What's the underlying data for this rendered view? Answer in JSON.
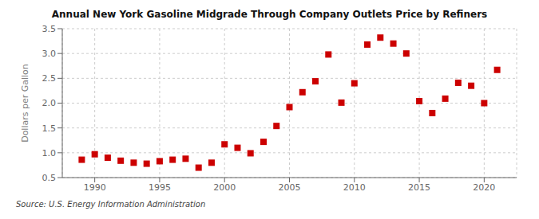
{
  "chart_data": {
    "type": "scatter",
    "title": "Annual New York Gasoline Midgrade Through Company Outlets Price by Refiners",
    "ylabel": "Dollars per Gallon",
    "annotation": "Source: U.S. Energy Information Administration",
    "x": [
      1989,
      1990,
      1991,
      1992,
      1993,
      1994,
      1995,
      1996,
      1997,
      1998,
      1999,
      2000,
      2001,
      2002,
      2003,
      2004,
      2005,
      2006,
      2007,
      2008,
      2009,
      2010,
      2011,
      2012,
      2013,
      2014,
      2015,
      2016,
      2017,
      2018,
      2019,
      2020,
      2021
    ],
    "values": [
      0.86,
      0.97,
      0.9,
      0.84,
      0.8,
      0.78,
      0.83,
      0.86,
      0.88,
      0.7,
      0.8,
      1.17,
      1.1,
      0.99,
      1.22,
      1.54,
      1.92,
      2.22,
      2.44,
      2.98,
      2.01,
      2.4,
      3.18,
      3.32,
      3.2,
      3.0,
      2.04,
      1.8,
      2.09,
      2.41,
      2.35,
      2.0,
      2.67
    ],
    "color": "#cc0000",
    "marker": "square",
    "xlim": [
      1987.5,
      2022.5
    ],
    "ylim": [
      0.5,
      3.5
    ],
    "xticks": [
      1990,
      1995,
      2000,
      2005,
      2010,
      2015,
      2020
    ],
    "yticks": [
      0.5,
      {
        "value": 1.0,
        "label": "1.0"
      },
      1.5,
      {
        "value": 2.0,
        "label": "2.0"
      },
      2.5,
      {
        "value": 3.0,
        "label": "3.0"
      },
      3.5
    ],
    "grid": true
  }
}
